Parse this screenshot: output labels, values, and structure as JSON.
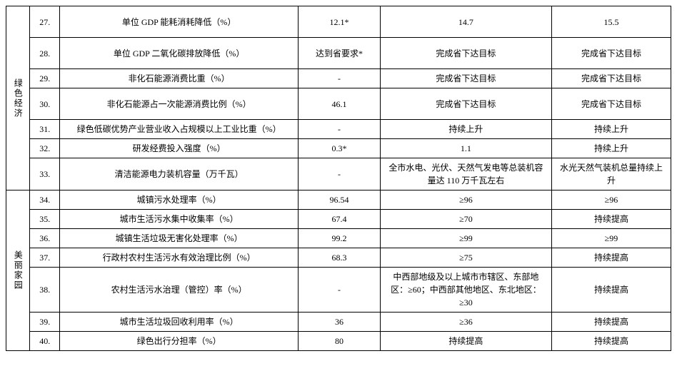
{
  "categories": [
    {
      "label": "绿色经济",
      "rowspan": 7
    },
    {
      "label": "美丽家园",
      "rowspan": 7
    }
  ],
  "rows": [
    {
      "num": "27.",
      "indicator": "单位 GDP 能耗消耗降低（%）",
      "v1": "12.1*",
      "v2": "14.7",
      "v3": "15.5",
      "tall": true
    },
    {
      "num": "28.",
      "indicator": "单位 GDP 二氧化碳排放降低（%）",
      "v1": "达到省要求*",
      "v2": "完成省下达目标",
      "v3": "完成省下达目标",
      "tall": true
    },
    {
      "num": "29.",
      "indicator": "非化石能源消费比重（%）",
      "v1": "-",
      "v2": "完成省下达目标",
      "v3": "完成省下达目标"
    },
    {
      "num": "30.",
      "indicator": "非化石能源占一次能源消费比例（%）",
      "v1": "46.1",
      "v2": "完成省下达目标",
      "v3": "完成省下达目标",
      "tall": true
    },
    {
      "num": "31.",
      "indicator": "绿色低碳优势产业营业收入占规模以上工业比重（%）",
      "v1": "-",
      "v2": "持续上升",
      "v3": "持续上升"
    },
    {
      "num": "32.",
      "indicator": "研发经费投入强度（%）",
      "v1": "0.3*",
      "v2": "1.1",
      "v3": "持续上升"
    },
    {
      "num": "33.",
      "indicator": "清洁能源电力装机容量（万千瓦）",
      "v1": "-",
      "v2": "全市水电、光伏、天然气发电等总装机容量达 110 万千瓦左右",
      "v3": "水光天然气装机总量持续上升"
    },
    {
      "num": "34.",
      "indicator": "城镇污水处理率（%）",
      "v1": "96.54",
      "v2": "≥96",
      "v3": "≥96"
    },
    {
      "num": "35.",
      "indicator": "城市生活污水集中收集率（%）",
      "v1": "67.4",
      "v2": "≥70",
      "v3": "持续提高"
    },
    {
      "num": "36.",
      "indicator": "城镇生活垃圾无害化处理率（%）",
      "v1": "99.2",
      "v2": "≥99",
      "v3": "≥99"
    },
    {
      "num": "37.",
      "indicator": "行政村农村生活污水有效治理比例（%）",
      "v1": "68.3",
      "v2": "≥75",
      "v3": "持续提高"
    },
    {
      "num": "38.",
      "indicator": "农村生活污水治理（管控）率（%）",
      "v1": "-",
      "v2": "中西部地级及以上城市市辖区、东部地区：≥60；中西部其他地区、东北地区：≥30",
      "v3": "持续提高"
    },
    {
      "num": "39.",
      "indicator": "城市生活垃圾回收利用率（%）",
      "v1": "36",
      "v2": "≥36",
      "v3": "持续提高"
    },
    {
      "num": "40.",
      "indicator": "绿色出行分担率（%）",
      "v1": "80",
      "v2": "持续提高",
      "v3": "持续提高"
    }
  ]
}
